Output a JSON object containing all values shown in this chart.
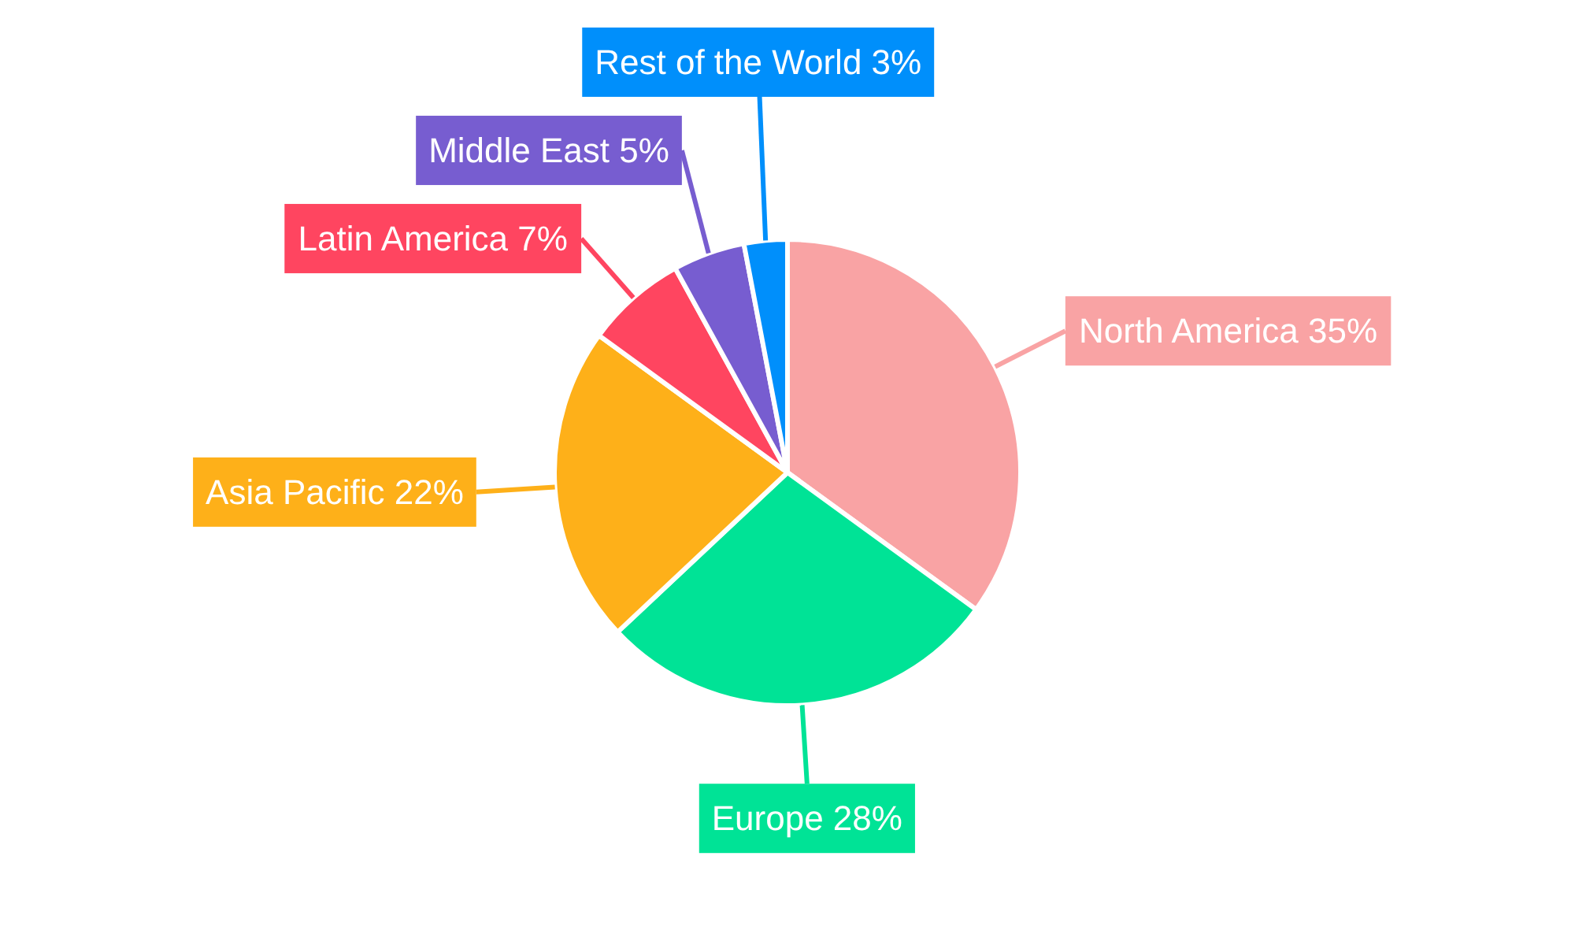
{
  "chart_data": {
    "type": "pie",
    "categories": [
      "North America",
      "Europe",
      "Asia Pacific",
      "Latin America",
      "Middle East",
      "Rest of the World"
    ],
    "values": [
      35,
      28,
      22,
      7,
      5,
      3
    ],
    "colors": [
      "#f9a3a4",
      "#00e396",
      "#feb019",
      "#ff4560",
      "#775dd0",
      "#008ffb"
    ],
    "value_labels": [
      "35%",
      "28%",
      "22%",
      "7%",
      "5%",
      "3%"
    ]
  }
}
